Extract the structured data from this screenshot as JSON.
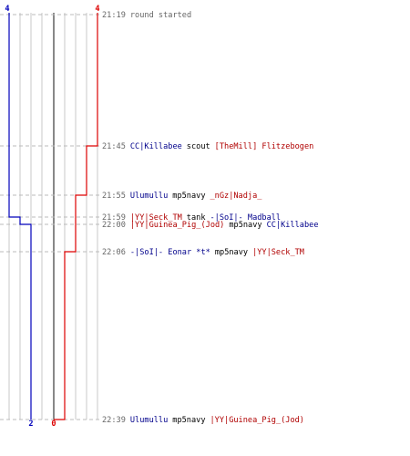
{
  "colors": {
    "blue_team": "#0000bb",
    "red_team": "#dd0000",
    "text_blue": "#00008b",
    "text_red": "#b00000",
    "time": "#666666",
    "guide": "#bbbbbb",
    "grid": "#c8c8c8",
    "center": "#555555"
  },
  "scores": {
    "blue_start": "4",
    "red_start": "4",
    "blue_end": "2",
    "red_end": "0"
  },
  "events": [
    {
      "id": "ev-round-start",
      "time": "21:19",
      "kind": "round",
      "text": "round started"
    },
    {
      "id": "ev-1",
      "time": "21:45",
      "kind": "kill",
      "killer": "CC|Killabee",
      "killer_team": "blue",
      "weapon": "scout",
      "victim": "[TheMill] Flitzebogen",
      "victim_team": "red"
    },
    {
      "id": "ev-2",
      "time": "21:55",
      "kind": "kill",
      "killer": "Ulumullu",
      "killer_team": "blue",
      "weapon": "mp5navy",
      "victim": "_nGz|Nadja_",
      "victim_team": "red"
    },
    {
      "id": "ev-3",
      "time": "21:59",
      "kind": "kill",
      "killer": "|YY|Seck_TM",
      "killer_team": "red",
      "weapon": "tank",
      "victim": "-|SoI|- Madball",
      "victim_team": "blue"
    },
    {
      "id": "ev-4",
      "time": "22:00",
      "kind": "kill",
      "killer": "|YY|Guinea_Pig_(Jod)",
      "killer_team": "red",
      "weapon": "mp5navy",
      "victim": "CC|Killabee",
      "victim_team": "blue"
    },
    {
      "id": "ev-5",
      "time": "22:06",
      "kind": "kill",
      "killer": "-|SoI|- Eonar *t*",
      "killer_team": "blue",
      "weapon": "mp5navy",
      "victim": "|YY|Seck_TM",
      "victim_team": "red"
    },
    {
      "id": "ev-6",
      "time": "22:39",
      "kind": "kill",
      "killer": "Ulumullu",
      "killer_team": "blue",
      "weapon": "mp5navy",
      "victim": "|YY|Guinea_Pig_(Jod)",
      "victim_team": "red"
    }
  ]
}
